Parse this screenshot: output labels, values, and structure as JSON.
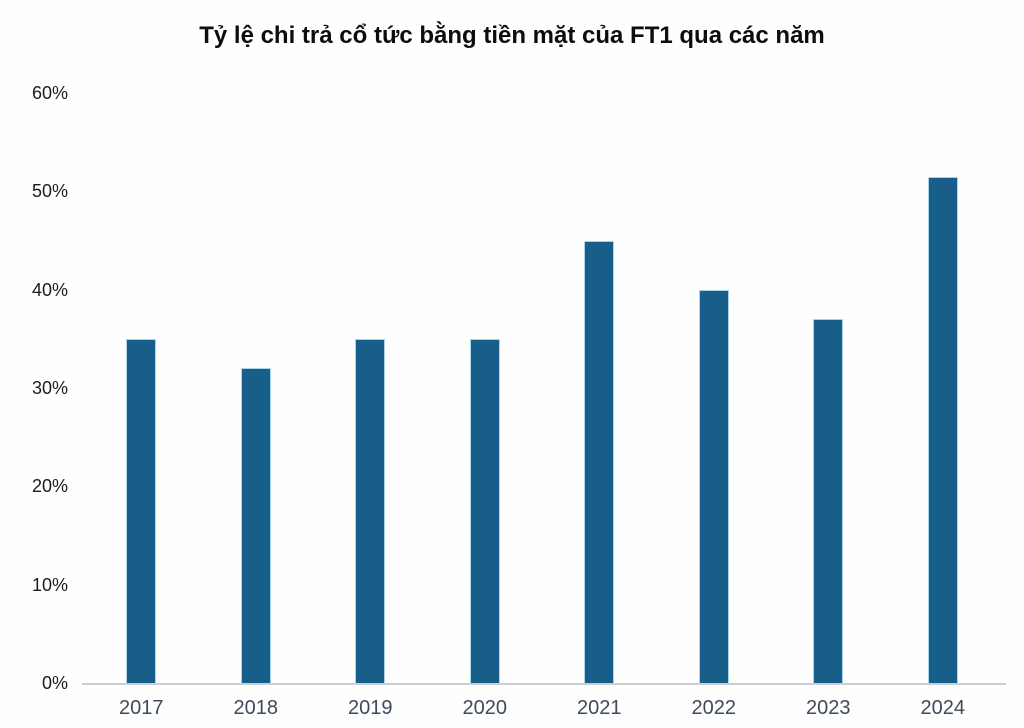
{
  "chart_data": {
    "type": "bar",
    "title": "Tỷ lệ chi trả cổ tức bằng tiền mặt của FT1 qua các năm",
    "categories": [
      "2017",
      "2018",
      "2019",
      "2020",
      "2021",
      "2022",
      "2023",
      "2024"
    ],
    "values": [
      35,
      32,
      35,
      35,
      45,
      40,
      37,
      51.5
    ],
    "unit": "%",
    "xlabel": "",
    "ylabel": "",
    "ylim": [
      0,
      60
    ],
    "ytick_step": 10,
    "ytick_labels": [
      "0%",
      "10%",
      "20%",
      "30%",
      "40%",
      "50%",
      "60%"
    ],
    "grid": false,
    "legend": "none",
    "bar_color": "#175f8a",
    "bar_edge_color": "#a9d6e6",
    "axis_line_color": "#cbced1",
    "title_color": "#0d0d0d",
    "ytick_color": "#1c1c1c",
    "xtick_color": "#3d4b5c"
  }
}
